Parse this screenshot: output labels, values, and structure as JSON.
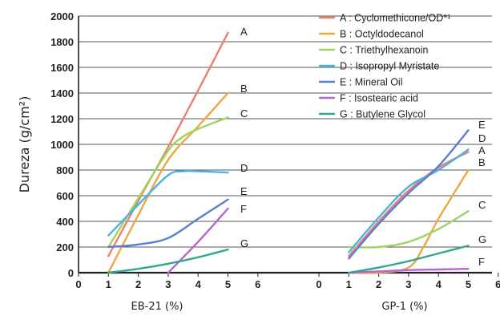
{
  "chart_data": {
    "type": "line",
    "ylabel": "Dureza (g/cm²)",
    "ylim": [
      0,
      2000
    ],
    "yticks": [
      "0",
      "200",
      "400",
      "600",
      "800",
      "1000",
      "1200",
      "1400",
      "1600",
      "1800",
      "2000"
    ],
    "grid": "horizontal",
    "legend_position": "top-right",
    "legend": [
      {
        "key": "A",
        "label": "Cyclomethicone/OD*¹",
        "color": "#ee7f6f"
      },
      {
        "key": "B",
        "label": "Octyldodecanol",
        "color": "#f0a640"
      },
      {
        "key": "C",
        "label": "Triethylhexanoin",
        "color": "#9cd460"
      },
      {
        "key": "D",
        "label": "Isopropyl Myristate",
        "color": "#48b4e6"
      },
      {
        "key": "E",
        "label": "Mineral Oil",
        "color": "#5a7fd2"
      },
      {
        "key": "F",
        "label": "Isostearic acid",
        "color": "#b366d0"
      },
      {
        "key": "G",
        "label": "Butylene Glycol",
        "color": "#2fa88e"
      }
    ],
    "panels": [
      {
        "xlabel": "EB-21 (%)",
        "xticks": [
          "0",
          "1",
          "2",
          "3",
          "4",
          "5",
          "6"
        ],
        "xlim": [
          0,
          6
        ],
        "series": [
          {
            "name": "A",
            "x": [
              1,
              2,
              3,
              4,
              5
            ],
            "y": [
              130,
              560,
              980,
              1420,
              1870
            ]
          },
          {
            "name": "B",
            "x": [
              1,
              2,
              3,
              4,
              5
            ],
            "y": [
              0,
              450,
              880,
              1140,
              1400
            ]
          },
          {
            "name": "C",
            "x": [
              1,
              2,
              3,
              3.5,
              4,
              5
            ],
            "y": [
              200,
              580,
              950,
              1060,
              1120,
              1210
            ]
          },
          {
            "name": "D",
            "x": [
              1,
              2,
              3,
              3.5,
              4,
              5
            ],
            "y": [
              290,
              530,
              760,
              790,
              790,
              780
            ]
          },
          {
            "name": "E",
            "x": [
              1,
              2,
              3,
              4,
              5
            ],
            "y": [
              200,
              220,
              270,
              420,
              570
            ]
          },
          {
            "name": "F",
            "x": [
              3,
              4,
              5
            ],
            "y": [
              0,
              240,
              500
            ]
          },
          {
            "name": "G",
            "x": [
              1,
              2,
              3,
              4,
              5
            ],
            "y": [
              0,
              30,
              70,
              120,
              180
            ]
          }
        ],
        "end_labels": [
          "A",
          "B",
          "C",
          "D",
          "E",
          "F",
          "G"
        ]
      },
      {
        "xlabel": "GP-1 (%)",
        "xticks": [
          "0",
          "1",
          "2",
          "3",
          "4",
          "5",
          "6"
        ],
        "xlim": [
          0,
          6
        ],
        "series": [
          {
            "name": "A",
            "x": [
              1,
              2,
              3,
              4,
              5
            ],
            "y": [
              130,
              400,
              640,
              820,
              940
            ]
          },
          {
            "name": "B",
            "x": [
              1,
              2,
              3,
              3.5,
              4,
              5
            ],
            "y": [
              0,
              0,
              40,
              200,
              420,
              800
            ]
          },
          {
            "name": "C",
            "x": [
              1,
              2,
              3,
              4,
              5
            ],
            "y": [
              200,
              200,
              240,
              340,
              480
            ]
          },
          {
            "name": "D",
            "x": [
              1,
              2,
              3,
              4,
              5
            ],
            "y": [
              160,
              430,
              670,
              800,
              960
            ]
          },
          {
            "name": "E",
            "x": [
              1,
              2,
              3,
              4,
              5
            ],
            "y": [
              110,
              380,
              620,
              830,
              1110
            ]
          },
          {
            "name": "F",
            "x": [
              1,
              2,
              3,
              4,
              5
            ],
            "y": [
              0,
              10,
              20,
              25,
              30
            ]
          },
          {
            "name": "G",
            "x": [
              1,
              2,
              3,
              4,
              5
            ],
            "y": [
              0,
              40,
              90,
              150,
              210
            ]
          }
        ],
        "end_labels": [
          "E",
          "D",
          "A",
          "B",
          "C",
          "G",
          "F"
        ]
      }
    ]
  }
}
